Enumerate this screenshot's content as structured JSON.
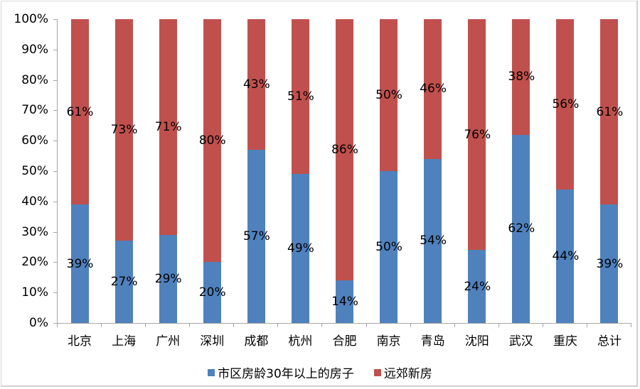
{
  "chart_data": {
    "type": "bar",
    "stacked": "percent",
    "title": "",
    "xlabel": "",
    "ylabel": "",
    "ylim": [
      0,
      100
    ],
    "yticks": [
      "0%",
      "10%",
      "20%",
      "30%",
      "40%",
      "50%",
      "60%",
      "70%",
      "80%",
      "90%",
      "100%"
    ],
    "categories": [
      "北京",
      "上海",
      "广州",
      "深圳",
      "成都",
      "杭州",
      "合肥",
      "南京",
      "青岛",
      "沈阳",
      "武汉",
      "重庆",
      "总计"
    ],
    "series": [
      {
        "name": "市区房龄30年以上的房子",
        "color": "#4f81bd",
        "values": [
          39,
          27,
          29,
          20,
          57,
          49,
          14,
          50,
          54,
          24,
          62,
          44,
          39
        ],
        "labels": [
          "39%",
          "27%",
          "29%",
          "20%",
          "57%",
          "49%",
          "14%",
          "50%",
          "54%",
          "24%",
          "62%",
          "44%",
          "39%"
        ]
      },
      {
        "name": "远郊新房",
        "color": "#c0504d",
        "values": [
          61,
          73,
          71,
          80,
          43,
          51,
          86,
          50,
          46,
          76,
          38,
          56,
          61
        ],
        "labels": [
          "61%",
          "73%",
          "71%",
          "80%",
          "43%",
          "51%",
          "86%",
          "50%",
          "46%",
          "76%",
          "38%",
          "56%",
          "61%"
        ]
      }
    ],
    "grid": false,
    "legend_position": "bottom"
  },
  "legend": {
    "items": [
      {
        "label": "市区房龄30年以上的房子",
        "color": "#4f81bd"
      },
      {
        "label": "远郊新房",
        "color": "#c0504d"
      }
    ]
  }
}
